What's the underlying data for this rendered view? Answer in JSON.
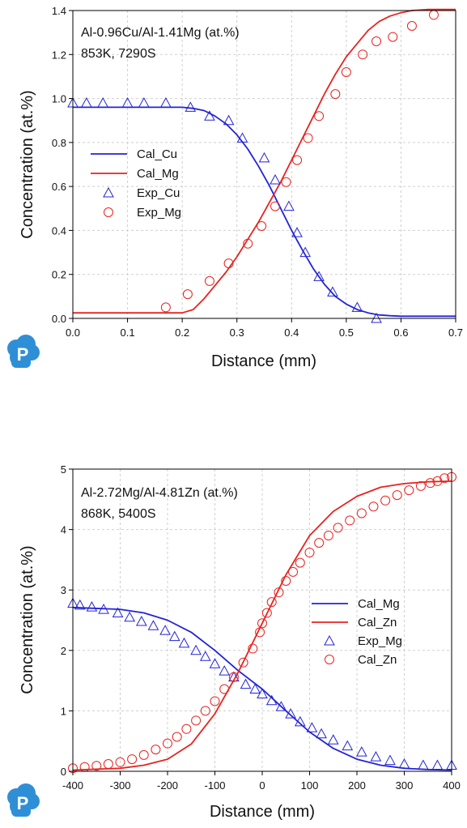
{
  "colors": {
    "blue": "#2323d6",
    "red": "#e8231f",
    "logo": "#2f8fd6"
  },
  "logo_letter": "P",
  "chart_data": [
    {
      "type": "line",
      "annotation": [
        "Al-0.96Cu/Al-1.41Mg (at.%)",
        "853K, 7290S"
      ],
      "xlabel": "Distance (mm)",
      "ylabel": "Concentration (at.%)",
      "xlim": [
        0,
        0.7
      ],
      "ylim": [
        0,
        1.4
      ],
      "xticks": [
        "0.0",
        "0.1",
        "0.2",
        "0.3",
        "0.4",
        "0.5",
        "0.6",
        "0.7"
      ],
      "yticks": [
        "0.0",
        "0.2",
        "0.4",
        "0.6",
        "0.8",
        "1.0",
        "1.2",
        "1.4"
      ],
      "grid": true,
      "legend_position": "center-left",
      "series": [
        {
          "name": "Cal_Cu",
          "kind": "line",
          "color": "#2323d6",
          "x": [
            0,
            0.1,
            0.2,
            0.22,
            0.24,
            0.26,
            0.28,
            0.3,
            0.32,
            0.34,
            0.36,
            0.38,
            0.4,
            0.42,
            0.44,
            0.46,
            0.48,
            0.5,
            0.52,
            0.54,
            0.56,
            0.58,
            0.6,
            0.7
          ],
          "y": [
            0.96,
            0.96,
            0.96,
            0.955,
            0.945,
            0.92,
            0.885,
            0.835,
            0.77,
            0.69,
            0.6,
            0.5,
            0.4,
            0.31,
            0.225,
            0.155,
            0.1,
            0.065,
            0.04,
            0.025,
            0.016,
            0.012,
            0.01,
            0.01
          ]
        },
        {
          "name": "Cal_Mg",
          "kind": "line",
          "color": "#e8231f",
          "x": [
            0,
            0.1,
            0.2,
            0.22,
            0.24,
            0.26,
            0.28,
            0.3,
            0.32,
            0.34,
            0.36,
            0.38,
            0.4,
            0.42,
            0.44,
            0.46,
            0.48,
            0.5,
            0.52,
            0.54,
            0.56,
            0.58,
            0.6,
            0.62,
            0.65,
            0.7
          ],
          "y": [
            0.025,
            0.025,
            0.025,
            0.04,
            0.09,
            0.15,
            0.21,
            0.28,
            0.36,
            0.44,
            0.53,
            0.62,
            0.72,
            0.82,
            0.92,
            1.02,
            1.11,
            1.19,
            1.25,
            1.31,
            1.35,
            1.375,
            1.39,
            1.4,
            1.405,
            1.405
          ]
        },
        {
          "name": "Exp_Cu",
          "kind": "marker-triangle",
          "color": "#2323d6",
          "x": [
            0.0,
            0.025,
            0.055,
            0.1,
            0.13,
            0.17,
            0.215,
            0.25,
            0.285,
            0.31,
            0.35,
            0.37,
            0.395,
            0.41,
            0.425,
            0.45,
            0.475,
            0.52,
            0.555
          ],
          "y": [
            0.98,
            0.98,
            0.98,
            0.98,
            0.98,
            0.98,
            0.96,
            0.92,
            0.9,
            0.82,
            0.73,
            0.63,
            0.51,
            0.39,
            0.3,
            0.19,
            0.12,
            0.05,
            0.0
          ]
        },
        {
          "name": "Exp_Mg",
          "kind": "marker-circle",
          "color": "#e8231f",
          "x": [
            0.17,
            0.21,
            0.25,
            0.285,
            0.32,
            0.345,
            0.37,
            0.39,
            0.41,
            0.43,
            0.45,
            0.48,
            0.5,
            0.53,
            0.555,
            0.585,
            0.62,
            0.66
          ],
          "y": [
            0.05,
            0.11,
            0.17,
            0.25,
            0.34,
            0.42,
            0.51,
            0.62,
            0.72,
            0.82,
            0.92,
            1.02,
            1.12,
            1.2,
            1.26,
            1.28,
            1.33,
            1.38
          ]
        }
      ]
    },
    {
      "type": "line",
      "annotation": [
        "Al-2.72Mg/Al-4.81Zn (at.%)",
        "868K, 5400S"
      ],
      "xlabel": "Distance (mm)",
      "ylabel": "Concentration (at.%)",
      "xlim": [
        -400,
        400
      ],
      "ylim": [
        0,
        5
      ],
      "xticks": [
        "-400",
        "-300",
        "-200",
        "-100",
        "0",
        "100",
        "200",
        "300",
        "400"
      ],
      "yticks": [
        "0",
        "1",
        "2",
        "3",
        "4",
        "5"
      ],
      "grid": true,
      "legend_position": "center-right",
      "series": [
        {
          "name": "Cal_Mg",
          "kind": "line",
          "color": "#2323d6",
          "x": [
            -400,
            -300,
            -250,
            -200,
            -150,
            -100,
            -50,
            0,
            50,
            100,
            150,
            200,
            250,
            300,
            350,
            400
          ],
          "y": [
            2.71,
            2.68,
            2.62,
            2.5,
            2.3,
            2.0,
            1.66,
            1.36,
            1.0,
            0.65,
            0.38,
            0.2,
            0.1,
            0.05,
            0.03,
            0.02
          ]
        },
        {
          "name": "Cal_Zn",
          "kind": "line",
          "color": "#e8231f",
          "x": [
            -400,
            -300,
            -250,
            -200,
            -150,
            -100,
            -50,
            0,
            50,
            100,
            150,
            200,
            250,
            300,
            350,
            400
          ],
          "y": [
            0.02,
            0.05,
            0.1,
            0.2,
            0.45,
            0.95,
            1.65,
            2.45,
            3.25,
            3.9,
            4.3,
            4.55,
            4.7,
            4.76,
            4.79,
            4.8
          ]
        },
        {
          "name": "Exp_Mg",
          "kind": "marker-triangle",
          "color": "#2323d6",
          "x": [
            -400,
            -385,
            -360,
            -335,
            -305,
            -280,
            -255,
            -230,
            -205,
            -185,
            -165,
            -140,
            -120,
            -100,
            -80,
            -60,
            -35,
            -15,
            0,
            20,
            40,
            60,
            80,
            105,
            125,
            150,
            180,
            210,
            240,
            270,
            300,
            340,
            370,
            400
          ],
          "y": [
            2.78,
            2.75,
            2.72,
            2.68,
            2.62,
            2.55,
            2.48,
            2.41,
            2.33,
            2.23,
            2.12,
            2.0,
            1.9,
            1.78,
            1.66,
            1.56,
            1.44,
            1.36,
            1.28,
            1.17,
            1.07,
            0.95,
            0.82,
            0.72,
            0.62,
            0.52,
            0.42,
            0.32,
            0.24,
            0.18,
            0.12,
            0.1,
            0.1,
            0.1
          ]
        },
        {
          "name": "Cal_Zn",
          "kind": "marker-circle",
          "color": "#e8231f",
          "x": [
            -400,
            -375,
            -350,
            -325,
            -300,
            -275,
            -250,
            -225,
            -200,
            -180,
            -160,
            -140,
            -120,
            -100,
            -80,
            -60,
            -40,
            -20,
            -5,
            0,
            10,
            20,
            35,
            50,
            65,
            80,
            100,
            120,
            140,
            160,
            185,
            210,
            235,
            260,
            285,
            310,
            335,
            355,
            370,
            385,
            400
          ],
          "y": [
            0.05,
            0.07,
            0.09,
            0.12,
            0.15,
            0.2,
            0.27,
            0.36,
            0.46,
            0.57,
            0.7,
            0.84,
            1.0,
            1.16,
            1.36,
            1.56,
            1.8,
            2.03,
            2.3,
            2.45,
            2.62,
            2.8,
            2.96,
            3.15,
            3.3,
            3.45,
            3.62,
            3.78,
            3.9,
            4.03,
            4.15,
            4.27,
            4.38,
            4.48,
            4.57,
            4.65,
            4.72,
            4.77,
            4.8,
            4.85,
            4.87
          ]
        }
      ]
    }
  ]
}
